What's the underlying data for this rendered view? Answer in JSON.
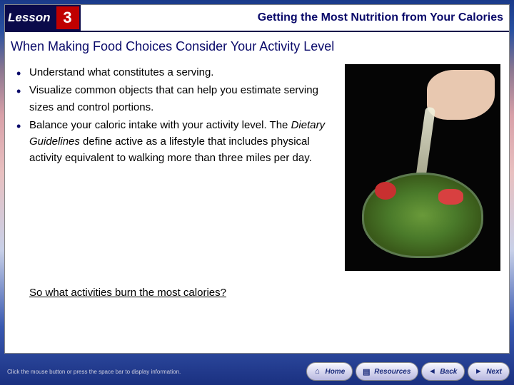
{
  "header": {
    "lesson_label": "Lesson",
    "lesson_number": "3",
    "title": "Getting the Most Nutrition from Your Calories"
  },
  "subtitle": "When Making Food Choices Consider Your Activity Level",
  "bullets": [
    "Understand what constitutes a serving.",
    "Visualize common objects that can help you estimate serving sizes and control portions.",
    "Balance your caloric intake with your activity level. The <i>Dietary Guidelines</i> define active as a lifestyle that includes physical activity equivalent to walking more than three miles per day."
  ],
  "question": "So what activities burn the most calories?",
  "footer": {
    "hint": "Click the mouse button or press the space bar to display information.",
    "buttons": {
      "home": "Home",
      "resources": "Resources",
      "back": "Back",
      "next": "Next"
    }
  },
  "colors": {
    "navy": "#0a0a4a",
    "red": "#c00000",
    "title_text": "#0a0a6a"
  }
}
